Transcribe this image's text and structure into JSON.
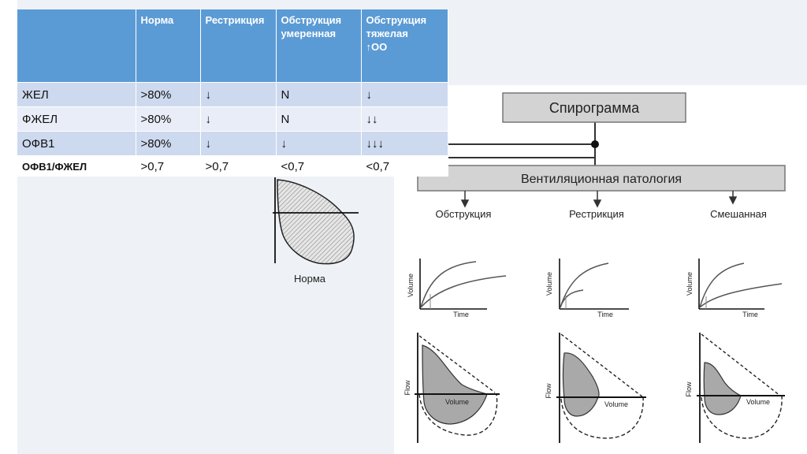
{
  "table": {
    "headers": [
      "",
      "Норма",
      "Рестрикция",
      "Обструкция умеренная",
      "Обструкция тяжелая ↑ОО"
    ],
    "header_lines": {
      "h1": [
        "Норма"
      ],
      "h2": [
        "Рестрикция"
      ],
      "h3": [
        "Обструкция",
        "умеренная"
      ],
      "h4": [
        "Обструкция",
        "тяжелая",
        "↑ОО"
      ]
    },
    "rows": [
      [
        "ЖЕЛ",
        ">80%",
        "↓",
        "N",
        "↓"
      ],
      [
        "ФЖЕЛ",
        ">80%",
        "↓",
        "N",
        "↓↓"
      ],
      [
        "ОФВ1",
        ">80%",
        "↓",
        "↓",
        "↓↓↓"
      ],
      [
        "ОФВ1/ФЖЕЛ",
        ">0,7",
        ">0,7",
        "<0,7",
        "<0,7"
      ]
    ]
  },
  "diagram": {
    "title": "Спирограмма",
    "subtitle": "Вентиляционная патология",
    "branches": [
      "Обструкция",
      "Рестрикция",
      "Смешанная"
    ],
    "norma_label": "Норма",
    "axis_labels": {
      "volume": "Volume",
      "time": "Time",
      "flow": "Flow"
    }
  },
  "colors": {
    "header_bg": "#5b9bd5",
    "row_dark": "#cdd9ee",
    "row_light": "#e8edf7",
    "box_fill": "#d3d3d3",
    "loop_fill": "#a9a9a9"
  }
}
